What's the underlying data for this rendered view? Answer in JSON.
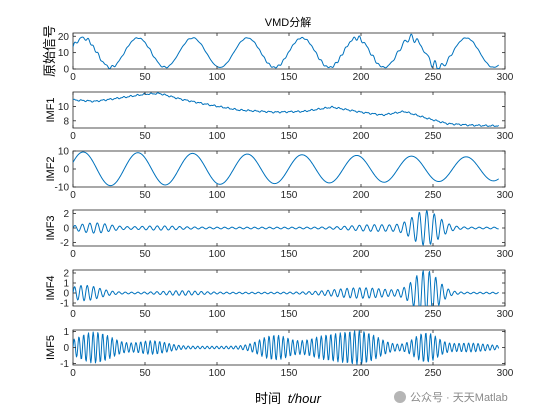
{
  "figure": {
    "title": "VMD分解",
    "xlabel_prefix": "时间",
    "xlabel_var": "t/hour",
    "watermark": "公众号 · 天天Matlab",
    "line_color": "#0072BD"
  },
  "chart_data": [
    {
      "type": "line",
      "ylabel": "原始信号",
      "xlim": [
        0,
        300
      ],
      "ylim": [
        0,
        22
      ],
      "xticks": [
        0,
        50,
        100,
        150,
        200,
        250,
        300
      ],
      "yticks": [
        0,
        10,
        20
      ],
      "components": {
        "base": 10,
        "slow": 0,
        "sin_amp": 9,
        "sin_period": 38,
        "sin_phase": 0.4,
        "b3": 0.5,
        "b4": 0.5,
        "b5": 0.35
      }
    },
    {
      "type": "line",
      "ylabel": "IMF1",
      "xlim": [
        0,
        300
      ],
      "ylim": [
        7,
        12
      ],
      "xticks": [
        0,
        50,
        100,
        150,
        200,
        250,
        300
      ],
      "yticks": [
        8,
        10
      ],
      "trend": [
        [
          0,
          10.9
        ],
        [
          15,
          10.7
        ],
        [
          30,
          11.1
        ],
        [
          50,
          11.7
        ],
        [
          60,
          11.8
        ],
        [
          75,
          11.0
        ],
        [
          95,
          10.2
        ],
        [
          115,
          9.5
        ],
        [
          140,
          9.2
        ],
        [
          160,
          9.3
        ],
        [
          180,
          9.9
        ],
        [
          200,
          9.2
        ],
        [
          215,
          8.8
        ],
        [
          230,
          9.3
        ],
        [
          245,
          8.4
        ],
        [
          260,
          7.6
        ],
        [
          275,
          7.4
        ],
        [
          290,
          7.3
        ]
      ]
    },
    {
      "type": "line",
      "ylabel": "IMF2",
      "xlim": [
        0,
        300
      ],
      "ylim": [
        -10,
        10
      ],
      "xticks": [
        0,
        50,
        100,
        150,
        200,
        250,
        300
      ],
      "yticks": [
        -10,
        0,
        10
      ],
      "sine": {
        "amp_start": 9.5,
        "amp_end": 6.5,
        "period": 38,
        "phase": 0.4
      }
    },
    {
      "type": "line",
      "ylabel": "IMF3",
      "xlim": [
        0,
        300
      ],
      "ylim": [
        -2.5,
        2.5
      ],
      "xticks": [
        0,
        50,
        100,
        150,
        200,
        250,
        300
      ],
      "yticks": [
        -2,
        0,
        2
      ],
      "oscillation": {
        "period": 5.2,
        "base_amp": 0.12,
        "bursts": [
          [
            15,
            10,
            0.6
          ],
          [
            60,
            12,
            0.18
          ],
          [
            245,
            9,
            2.3
          ],
          [
            210,
            15,
            0.35
          ]
        ]
      }
    },
    {
      "type": "line",
      "ylabel": "IMF4",
      "xlim": [
        0,
        300
      ],
      "ylim": [
        -1.3,
        2.3
      ],
      "xticks": [
        0,
        50,
        100,
        150,
        200,
        250,
        300
      ],
      "yticks": [
        -1,
        0,
        1,
        2
      ],
      "oscillation": {
        "period": 4.4,
        "base_amp": 0.08,
        "bursts": [
          [
            8,
            10,
            0.7
          ],
          [
            75,
            12,
            0.15
          ],
          [
            200,
            18,
            0.45
          ],
          [
            245,
            8,
            2.2
          ]
        ]
      }
    },
    {
      "type": "line",
      "ylabel": "IMF5",
      "xlim": [
        0,
        300
      ],
      "ylim": [
        -1.1,
        1.1
      ],
      "xticks": [
        0,
        50,
        100,
        150,
        200,
        250,
        300
      ],
      "yticks": [
        -1,
        0,
        1
      ],
      "oscillation": {
        "period": 3.3,
        "base_amp": 0.08,
        "bursts": [
          [
            15,
            12,
            0.9
          ],
          [
            55,
            10,
            0.35
          ],
          [
            140,
            10,
            0.7
          ],
          [
            175,
            12,
            0.6
          ],
          [
            200,
            12,
            0.9
          ],
          [
            245,
            8,
            0.85
          ],
          [
            275,
            12,
            0.2
          ]
        ]
      }
    }
  ]
}
